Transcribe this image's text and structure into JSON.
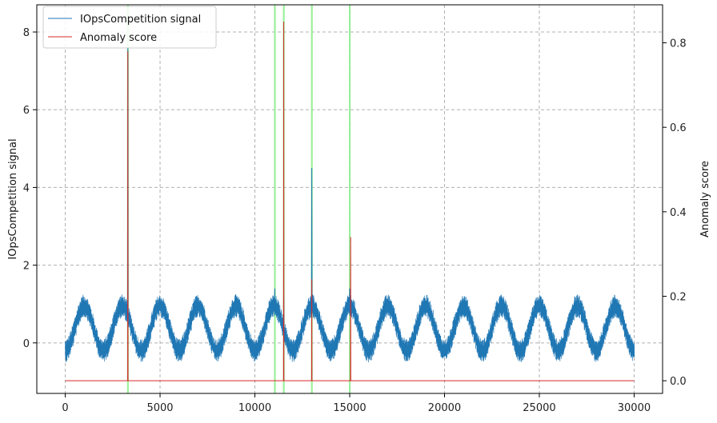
{
  "chart_data": {
    "type": "line",
    "grid": true,
    "legend_placement": "top-left",
    "x": {
      "lim": [
        -1500,
        31500
      ],
      "ticks": [
        0,
        5000,
        10000,
        15000,
        20000,
        25000,
        30000
      ],
      "tick_labels": [
        "0",
        "5000",
        "10000",
        "15000",
        "20000",
        "25000",
        "30000"
      ],
      "label": ""
    },
    "y_left": {
      "label": "IOpsCompetition signal",
      "lim": [
        -1.3,
        8.7
      ],
      "ticks": [
        0,
        2,
        4,
        6,
        8
      ],
      "tick_labels": [
        "0",
        "2",
        "4",
        "6",
        "8"
      ]
    },
    "y_right": {
      "label": "Anomaly score",
      "lim": [
        -0.03,
        0.89
      ],
      "ticks": [
        0.0,
        0.2,
        0.4,
        0.6,
        0.8
      ],
      "tick_labels": [
        "0.0",
        "0.2",
        "0.4",
        "0.6",
        "0.8"
      ]
    },
    "series": [
      {
        "name": "IOpsCompetition signal",
        "axis": "left",
        "color": "#1f77b4",
        "length": 30000,
        "periodic_pattern": {
          "period": 2000,
          "min": -0.2,
          "max": 0.95,
          "noise_band": 0.3
        },
        "spikes": [
          {
            "x": 3300,
            "y": 7.6
          },
          {
            "x": 11050,
            "y": 1.4
          },
          {
            "x": 11520,
            "y": 1.3
          },
          {
            "x": 13000,
            "y": 4.5
          },
          {
            "x": 15000,
            "y": 1.4
          }
        ]
      },
      {
        "name": "Anomaly score",
        "axis": "right",
        "color": "#d62728",
        "baseline": 0.0,
        "spikes": [
          {
            "x": 3300,
            "y": 0.78
          },
          {
            "x": 11520,
            "y": 0.85
          },
          {
            "x": 13000,
            "y": 0.24
          },
          {
            "x": 15050,
            "y": 0.34
          }
        ]
      }
    ],
    "highlight_regions": {
      "color": "#90ee90",
      "x": [
        3300,
        11050,
        11520,
        13000,
        15000
      ]
    }
  }
}
